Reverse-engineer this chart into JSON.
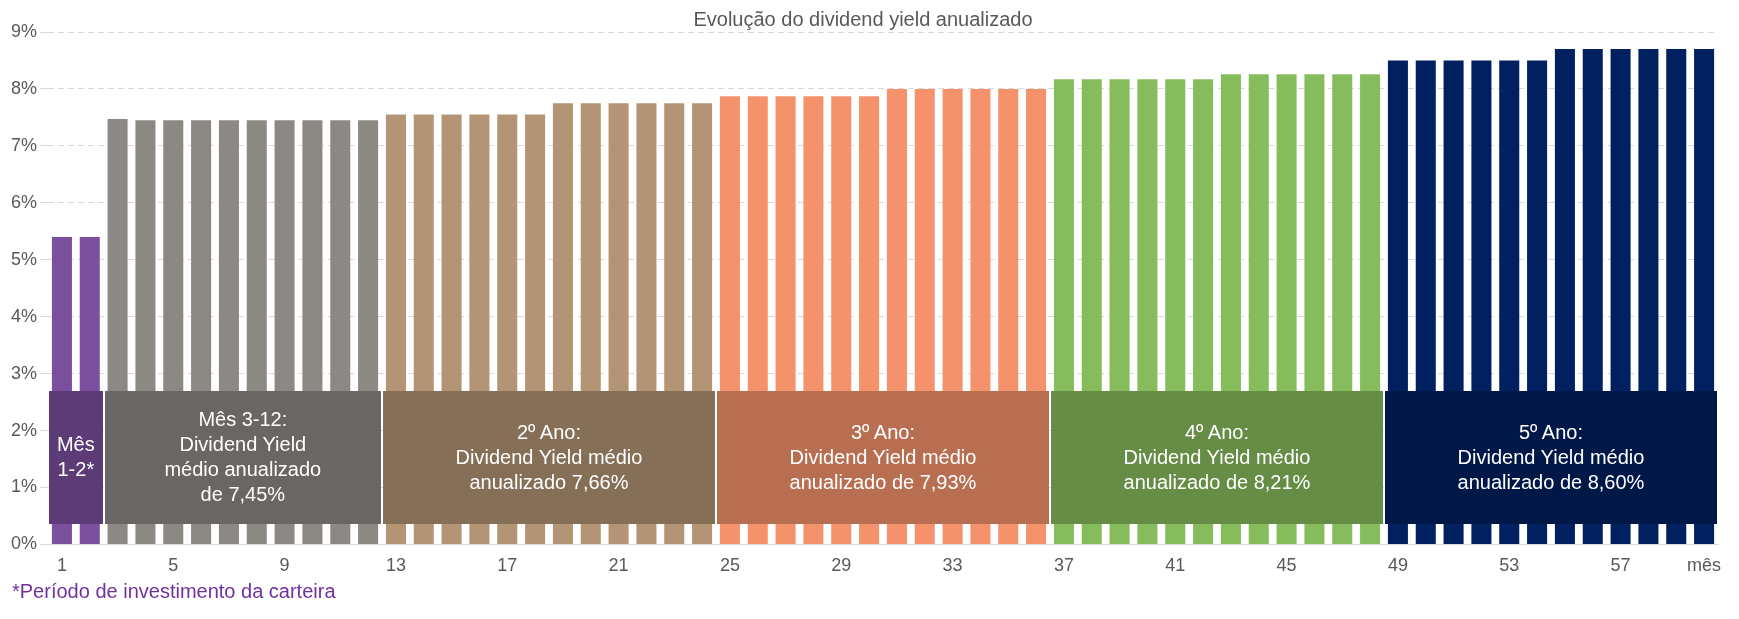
{
  "chart_data": {
    "type": "bar",
    "title": "Evolução do dividend yield anualizado",
    "categories": [
      "1",
      null,
      null,
      null,
      "5",
      null,
      null,
      null,
      "9",
      null,
      null,
      null,
      "13",
      null,
      null,
      null,
      "17",
      null,
      null,
      null,
      "21",
      null,
      null,
      null,
      "25",
      null,
      null,
      null,
      "29",
      null,
      null,
      null,
      "33",
      null,
      null,
      null,
      "37",
      null,
      null,
      null,
      "41",
      null,
      null,
      null,
      "45",
      null,
      null,
      null,
      "49",
      null,
      null,
      null,
      "53",
      null,
      null,
      null,
      "57",
      null,
      null,
      "mês"
    ],
    "values": [
      5.4,
      5.4,
      7.47,
      7.45,
      7.45,
      7.45,
      7.45,
      7.45,
      7.45,
      7.45,
      7.45,
      7.45,
      7.55,
      7.55,
      7.55,
      7.55,
      7.55,
      7.55,
      7.75,
      7.75,
      7.75,
      7.75,
      7.75,
      7.75,
      7.87,
      7.87,
      7.87,
      7.87,
      7.87,
      7.87,
      8.0,
      8.0,
      8.0,
      8.0,
      8.0,
      8.0,
      8.17,
      8.17,
      8.17,
      8.17,
      8.17,
      8.17,
      8.26,
      8.26,
      8.26,
      8.26,
      8.26,
      8.26,
      8.5,
      8.5,
      8.5,
      8.5,
      8.5,
      8.5,
      8.7,
      8.7,
      8.7,
      8.7,
      8.7,
      8.7
    ],
    "colors": [
      "#7b4f9d",
      "#7b4f9d",
      "#8c8884",
      "#8c8884",
      "#8c8884",
      "#8c8884",
      "#8c8884",
      "#8c8884",
      "#8c8884",
      "#8c8884",
      "#8c8884",
      "#8c8884",
      "#b39474",
      "#b39474",
      "#b39474",
      "#b39474",
      "#b39474",
      "#b39474",
      "#b39474",
      "#b39474",
      "#b39474",
      "#b39474",
      "#b39474",
      "#b39474",
      "#f4926c",
      "#f4926c",
      "#f4926c",
      "#f4926c",
      "#f4926c",
      "#f4926c",
      "#f4926c",
      "#f4926c",
      "#f4926c",
      "#f4926c",
      "#f4926c",
      "#f4926c",
      "#86bc5c",
      "#86bc5c",
      "#86bc5c",
      "#86bc5c",
      "#86bc5c",
      "#86bc5c",
      "#86bc5c",
      "#86bc5c",
      "#86bc5c",
      "#86bc5c",
      "#86bc5c",
      "#86bc5c",
      "#002060",
      "#002060",
      "#002060",
      "#002060",
      "#002060",
      "#002060",
      "#002060",
      "#002060",
      "#002060",
      "#002060",
      "#002060",
      "#002060"
    ],
    "ylim": [
      0,
      9
    ],
    "yticks": [
      {
        "value": 0,
        "label": "0%"
      },
      {
        "value": 1,
        "label": "1%"
      },
      {
        "value": 2,
        "label": "2%"
      },
      {
        "value": 3,
        "label": "3%"
      },
      {
        "value": 4,
        "label": "4%"
      },
      {
        "value": 5,
        "label": "5%"
      },
      {
        "value": 6,
        "label": "6%"
      },
      {
        "value": 7,
        "label": "7%"
      },
      {
        "value": 8,
        "label": "8%"
      },
      {
        "value": 9,
        "label": "9%"
      }
    ],
    "grid": "y",
    "legend": false,
    "annotations": [
      "Mês\n1-2*",
      "Mês 3-12:\nDividend Yield\nmédio anualizado\nde 7,45%",
      "2º Ano:\nDividend Yield médio\nanualizado 7,66%",
      "3º Ano:\nDividend Yield médio\nanualizado de 7,93%",
      "4º Ano:\nDividend Yield médio\nanualizado de 8,21%",
      "5º Ano:\nDividend Yield médio\nanualizado de 8,60%",
      "*Período de investimento da carteira"
    ]
  }
}
